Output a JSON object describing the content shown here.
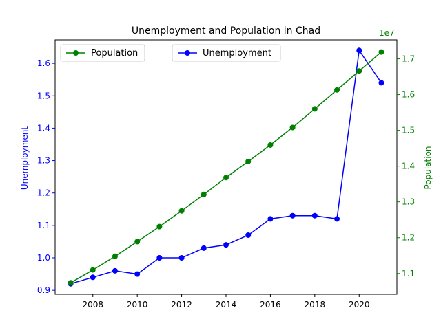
{
  "chart_data": {
    "type": "line",
    "title": "Unemployment and Population in Chad",
    "x": [
      2007,
      2008,
      2009,
      2010,
      2011,
      2012,
      2013,
      2014,
      2015,
      2016,
      2017,
      2018,
      2019,
      2020,
      2021
    ],
    "xticks": [
      "2008",
      "2010",
      "2012",
      "2014",
      "2016",
      "2018",
      "2020"
    ],
    "xlim": [
      2006.3,
      2021.7
    ],
    "left_axis": {
      "label": "Unemployment",
      "color": "#0000ff",
      "ylim": [
        0.8876,
        1.6724
      ],
      "ticks": [
        "0.9",
        "1.0",
        "1.1",
        "1.2",
        "1.3",
        "1.4",
        "1.5",
        "1.6"
      ]
    },
    "right_axis": {
      "label": "Population",
      "color": "#008000",
      "offset_text": "1e7",
      "ylim": [
        1.0419,
        1.7529
      ],
      "ticks": [
        "1.1",
        "1.2",
        "1.3",
        "1.4",
        "1.5",
        "1.6",
        "1.7"
      ]
    },
    "series": [
      {
        "name": "Unemployment",
        "axis": "left",
        "color": "#0000ff",
        "values": [
          0.92,
          0.94,
          0.96,
          0.95,
          1.0,
          1.0,
          1.03,
          1.04,
          1.07,
          1.12,
          1.13,
          1.13,
          1.12,
          1.64,
          1.54
        ]
      },
      {
        "name": "Population",
        "axis": "right",
        "color": "#008000",
        "values": [
          10740000,
          11100000,
          11480000,
          11890000,
          12310000,
          12750000,
          13210000,
          13680000,
          14130000,
          14590000,
          15080000,
          15600000,
          16130000,
          16660000,
          17190000
        ]
      }
    ],
    "legends": [
      {
        "label": "Population",
        "color": "#008000",
        "placement": "upper-left"
      },
      {
        "label": "Unemployment",
        "color": "#0000ff",
        "placement": "upper-center"
      }
    ],
    "grid": false
  }
}
